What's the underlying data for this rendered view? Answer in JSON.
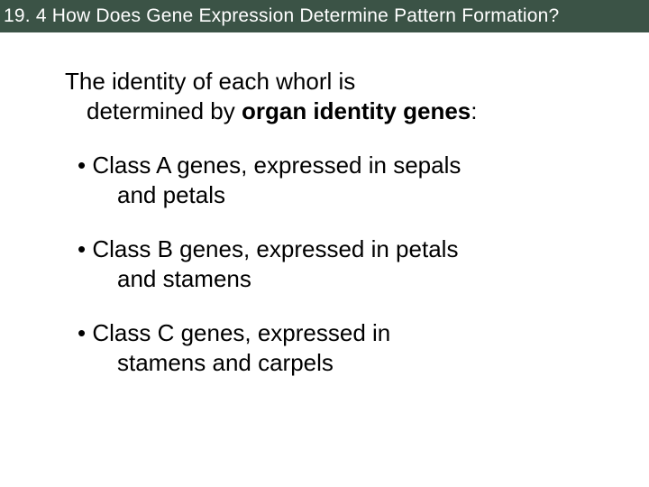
{
  "header": {
    "title": "19. 4 How Does Gene Expression Determine Pattern Formation?",
    "background_color": "#3b5346",
    "text_color": "#ffffff",
    "font_size_pt": 16
  },
  "intro": {
    "line1": "The identity of each whorl is",
    "line2_prefix": "determined by ",
    "line2_bold": "organ identity genes",
    "line2_suffix": ":"
  },
  "bullets": [
    {
      "line1": "Class A genes, expressed in sepals",
      "line2": "and petals"
    },
    {
      "line1": "Class B genes, expressed in petals",
      "line2": "and stamens"
    },
    {
      "line1": "Class C genes, expressed in",
      "line2": "stamens and carpels"
    }
  ],
  "styling": {
    "body_font_size_pt": 20,
    "body_text_color": "#000000",
    "background_color": "#ffffff",
    "bullet_char": "•"
  }
}
